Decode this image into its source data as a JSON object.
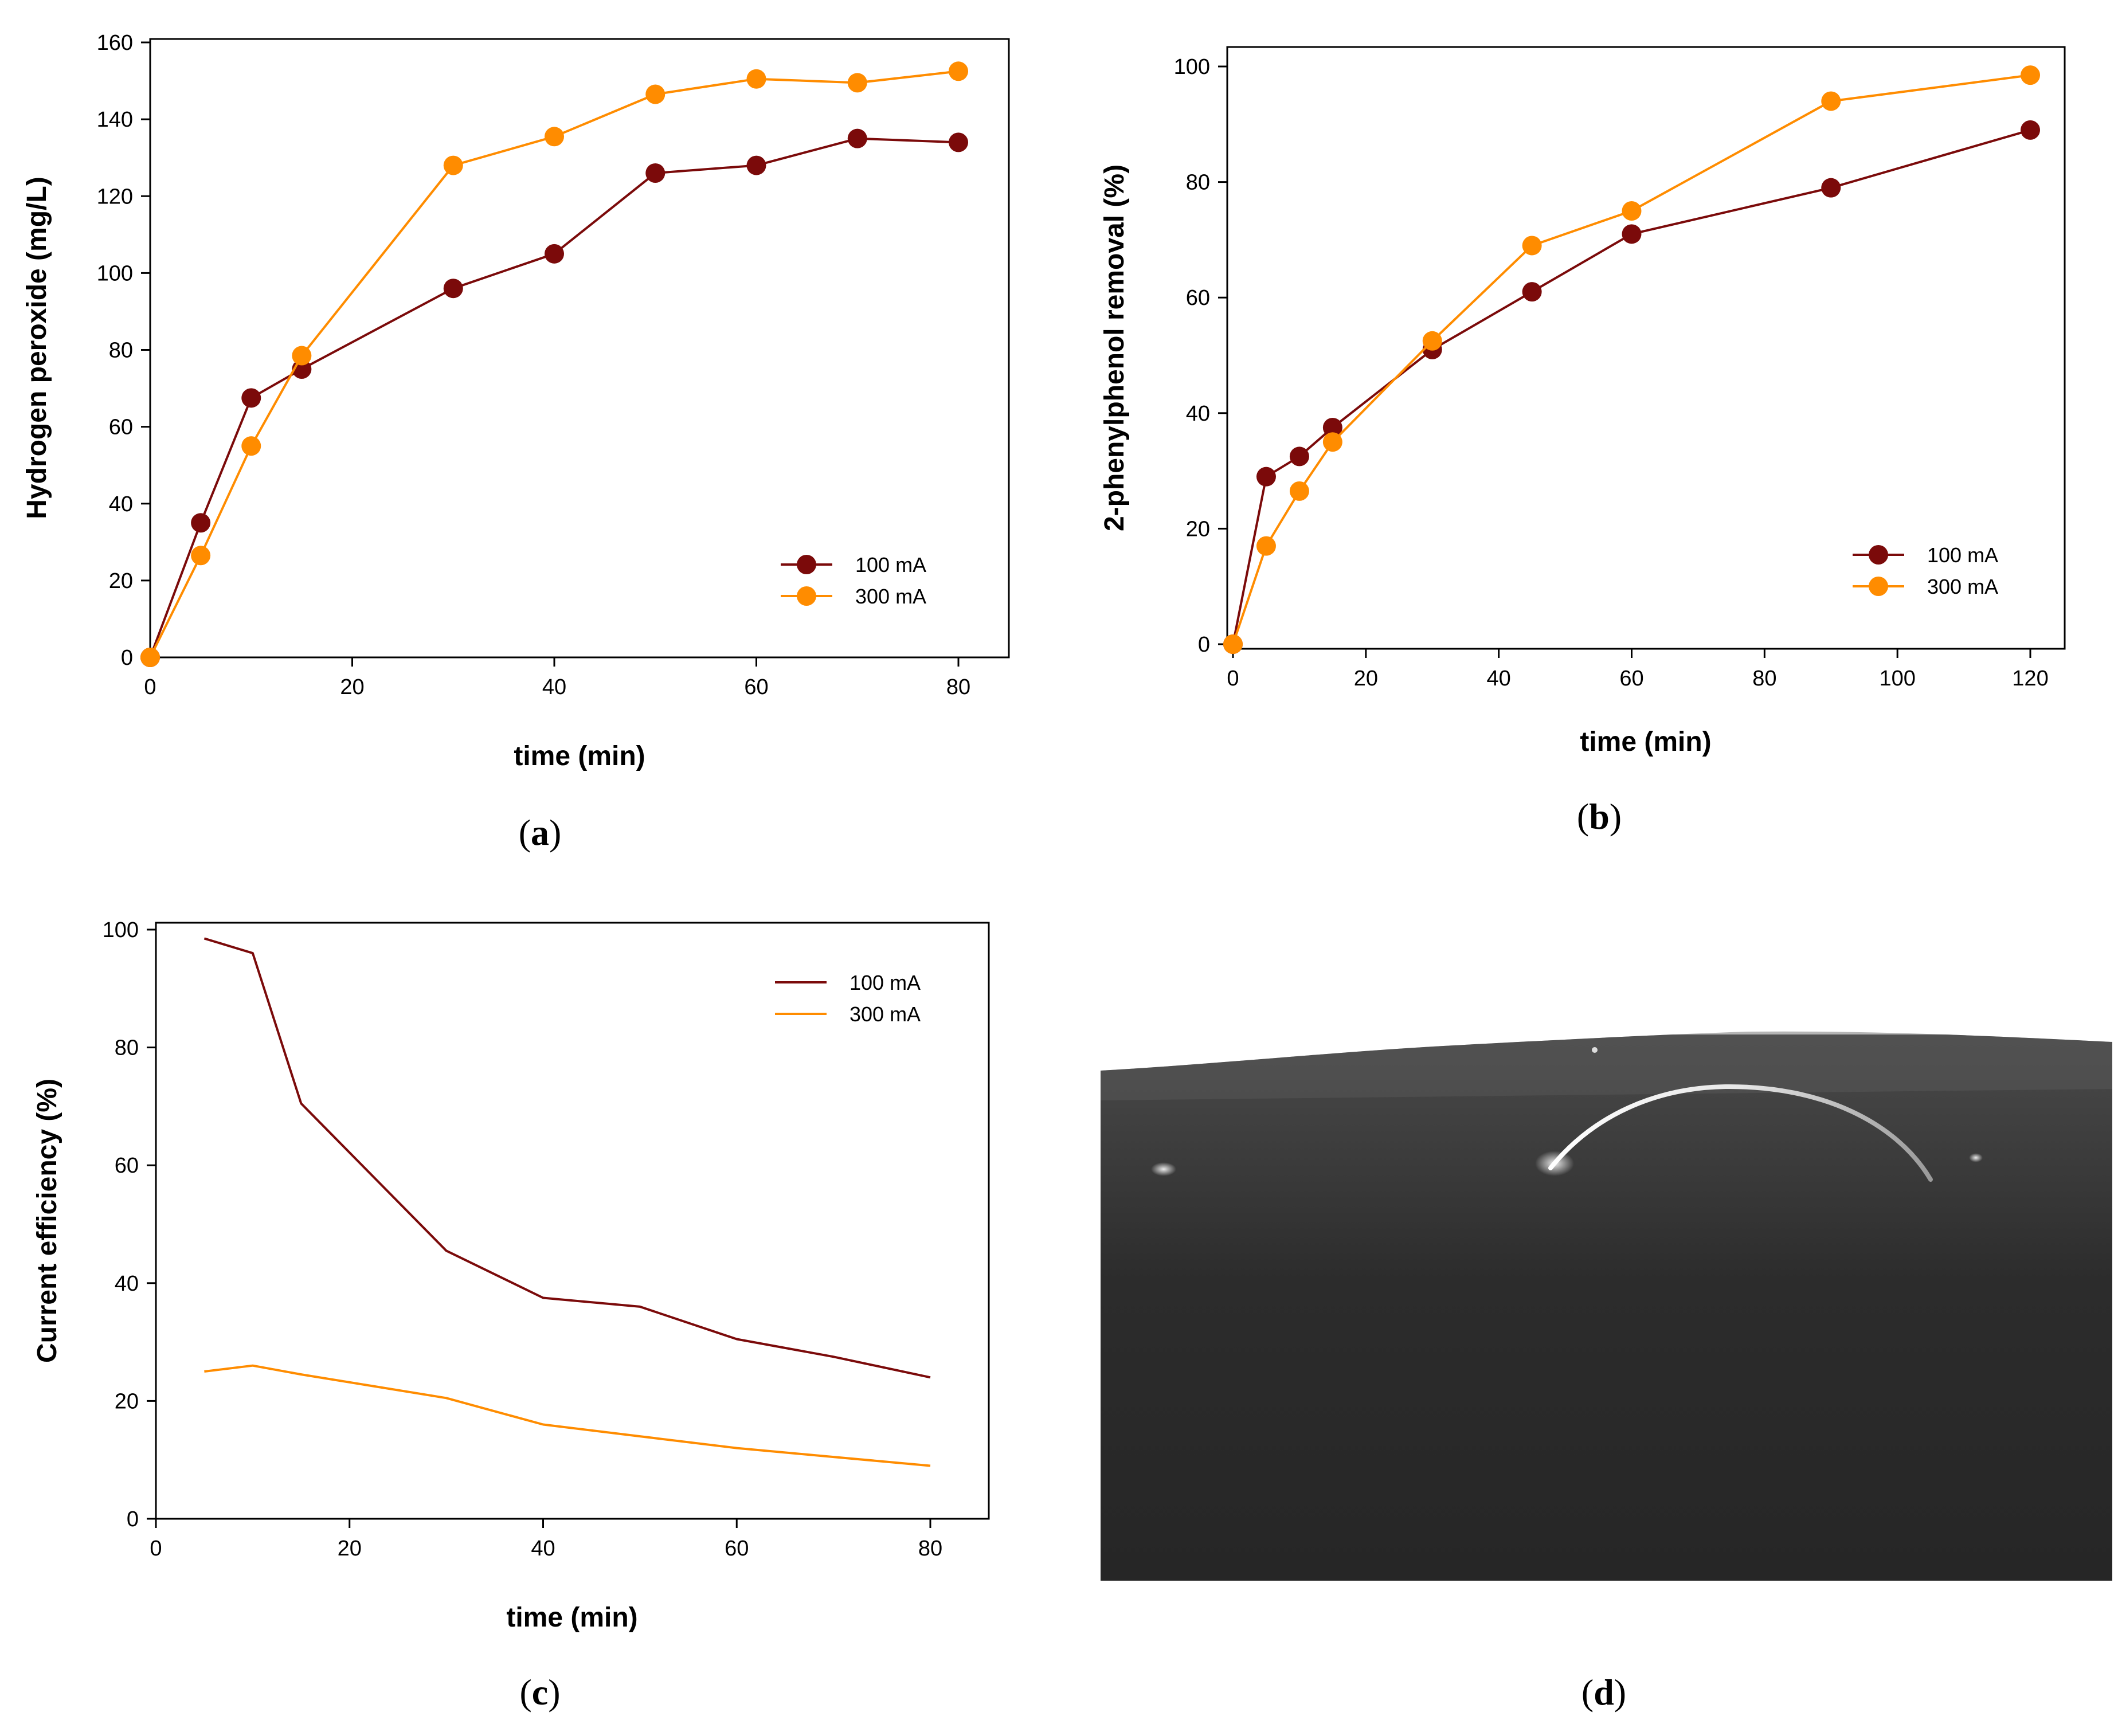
{
  "colors": {
    "series_100mA": "#7b0a0a",
    "series_300mA": "#ff8c00"
  },
  "chart_data": [
    {
      "id": "a",
      "type": "line",
      "caption": "a",
      "xlabel": "time (min)",
      "ylabel": "Hydrogen peroxide (mg/L)",
      "xlim": [
        0,
        85
      ],
      "ylim": [
        0,
        160
      ],
      "xticks": [
        0,
        20,
        40,
        60,
        80
      ],
      "yticks": [
        0,
        20,
        40,
        60,
        80,
        100,
        120,
        140,
        160
      ],
      "markers": true,
      "legend_position": "bottom-right",
      "series": [
        {
          "name": "100 mA",
          "x": [
            0,
            5,
            10,
            15,
            30,
            40,
            50,
            60,
            70,
            80
          ],
          "values": [
            0,
            35,
            67.5,
            75,
            96,
            105,
            126,
            128,
            135,
            134
          ]
        },
        {
          "name": "300 mA",
          "x": [
            0,
            5,
            10,
            15,
            30,
            40,
            50,
            60,
            70,
            80
          ],
          "values": [
            0,
            26.5,
            55,
            78.5,
            128,
            135.5,
            146.5,
            150.5,
            149.5,
            152.5
          ]
        }
      ]
    },
    {
      "id": "b",
      "type": "line",
      "caption": "b",
      "xlabel": "time (min)",
      "ylabel": "2-phenylphenol removal (%)",
      "xlim": [
        0,
        125
      ],
      "ylim": [
        0,
        100
      ],
      "xticks": [
        0,
        20,
        40,
        60,
        80,
        100,
        120
      ],
      "yticks": [
        0,
        20,
        40,
        60,
        80,
        100
      ],
      "markers": true,
      "legend_position": "bottom-right",
      "series": [
        {
          "name": "100 mA",
          "x": [
            0,
            5,
            10,
            15,
            30,
            45,
            60,
            90,
            120
          ],
          "values": [
            0,
            29,
            32.5,
            37.5,
            51,
            61,
            71,
            79,
            89
          ]
        },
        {
          "name": "300 mA",
          "x": [
            0,
            5,
            10,
            15,
            30,
            45,
            60,
            90,
            120
          ],
          "values": [
            0,
            17,
            26.5,
            35,
            52.5,
            69,
            75,
            94,
            98.5
          ]
        }
      ]
    },
    {
      "id": "c",
      "type": "line",
      "caption": "c",
      "xlabel": "time (min)",
      "ylabel": "Current efficiency (%)",
      "xlim": [
        0,
        85
      ],
      "ylim": [
        0,
        100
      ],
      "xticks": [
        0,
        20,
        40,
        60,
        80
      ],
      "yticks": [
        0,
        20,
        40,
        60,
        80,
        100
      ],
      "markers": false,
      "legend_position": "top-right",
      "series": [
        {
          "name": "100 mA",
          "x": [
            5,
            10,
            15,
            30,
            40,
            50,
            60,
            70,
            80
          ],
          "values": [
            98.5,
            96,
            70.5,
            45.5,
            37.5,
            36,
            30.5,
            27.5,
            24
          ]
        },
        {
          "name": "300 mA",
          "x": [
            5,
            10,
            15,
            30,
            40,
            50,
            60,
            70,
            80
          ],
          "values": [
            25,
            26,
            24.5,
            20.5,
            16,
            14,
            12,
            10.5,
            9
          ]
        }
      ]
    }
  ],
  "photo": {
    "caption": "d"
  }
}
